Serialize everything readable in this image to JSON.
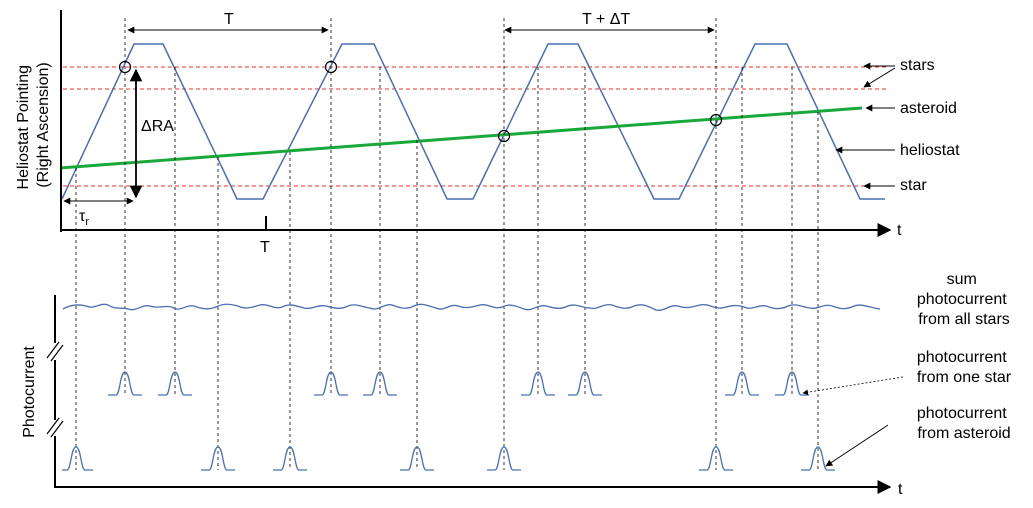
{
  "top_panel": {
    "ylabel_line1": "Heliostat Pointing",
    "ylabel_line2": "(Right Ascension)",
    "t_axis_label": "t",
    "period_label": "T",
    "period_plus_label": "T + ΔT",
    "delta_ra_label": "ΔRA",
    "tau_label": "τ",
    "tau_sub": "r",
    "tick_label": "T",
    "labels": {
      "stars": "stars",
      "asteroid": "asteroid",
      "heliostat": "heliostat",
      "star": "star"
    }
  },
  "bottom_panel": {
    "ylabel": "Photocurrent",
    "t_axis_label": "t",
    "sum_label": [
      "sum",
      "photocurrent",
      "from all stars"
    ],
    "one_star_label": [
      "photocurrent",
      "from one star"
    ],
    "asteroid_label": [
      "photocurrent",
      "from asteroid"
    ]
  },
  "colors": {
    "heliostat": "#4a6fb0",
    "asteroid_line": "#19a83a",
    "star_lines": "#e8302a",
    "axis": "#000000",
    "guides": "#000000"
  }
}
